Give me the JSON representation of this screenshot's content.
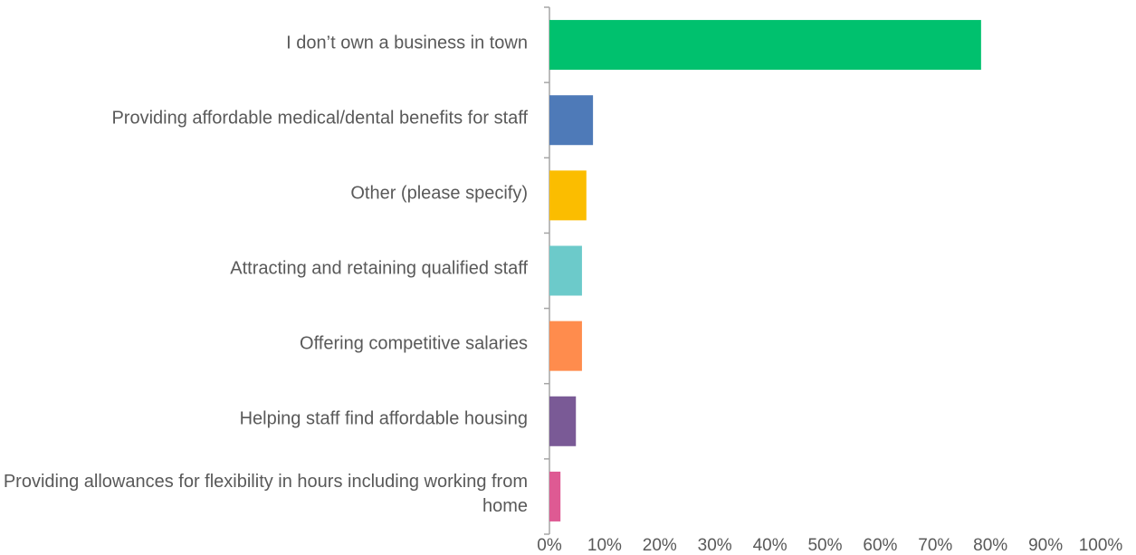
{
  "chart_data": {
    "type": "hbar",
    "categories": [
      "I don’t own a business in town",
      "Providing affordable medical/dental benefits for staff",
      "Other (please specify)",
      "Attracting and retaining qualified staff",
      "Offering competitive salaries",
      "Helping staff find affordable housing",
      "Providing allowances for flexibility in hours including working from home"
    ],
    "values": [
      78.3,
      7.9,
      6.7,
      5.9,
      5.9,
      4.8,
      2.0
    ],
    "colors": [
      "#00c16e",
      "#4e7ab8",
      "#fbbd00",
      "#6ccaca",
      "#ff8c4d",
      "#7a5a96",
      "#de5a93"
    ],
    "xlim": [
      0,
      100
    ],
    "xticks": [
      {
        "value": 0,
        "label": "0%"
      },
      {
        "value": 10,
        "label": "10%"
      },
      {
        "value": 20,
        "label": "20%"
      },
      {
        "value": 30,
        "label": "30%"
      },
      {
        "value": 40,
        "label": "40%"
      },
      {
        "value": 50,
        "label": "50%"
      },
      {
        "value": 60,
        "label": "60%"
      },
      {
        "value": 70,
        "label": "70%"
      },
      {
        "value": 80,
        "label": "80%"
      },
      {
        "value": 90,
        "label": "90%"
      },
      {
        "value": 100,
        "label": "100%"
      }
    ],
    "grid": false
  }
}
